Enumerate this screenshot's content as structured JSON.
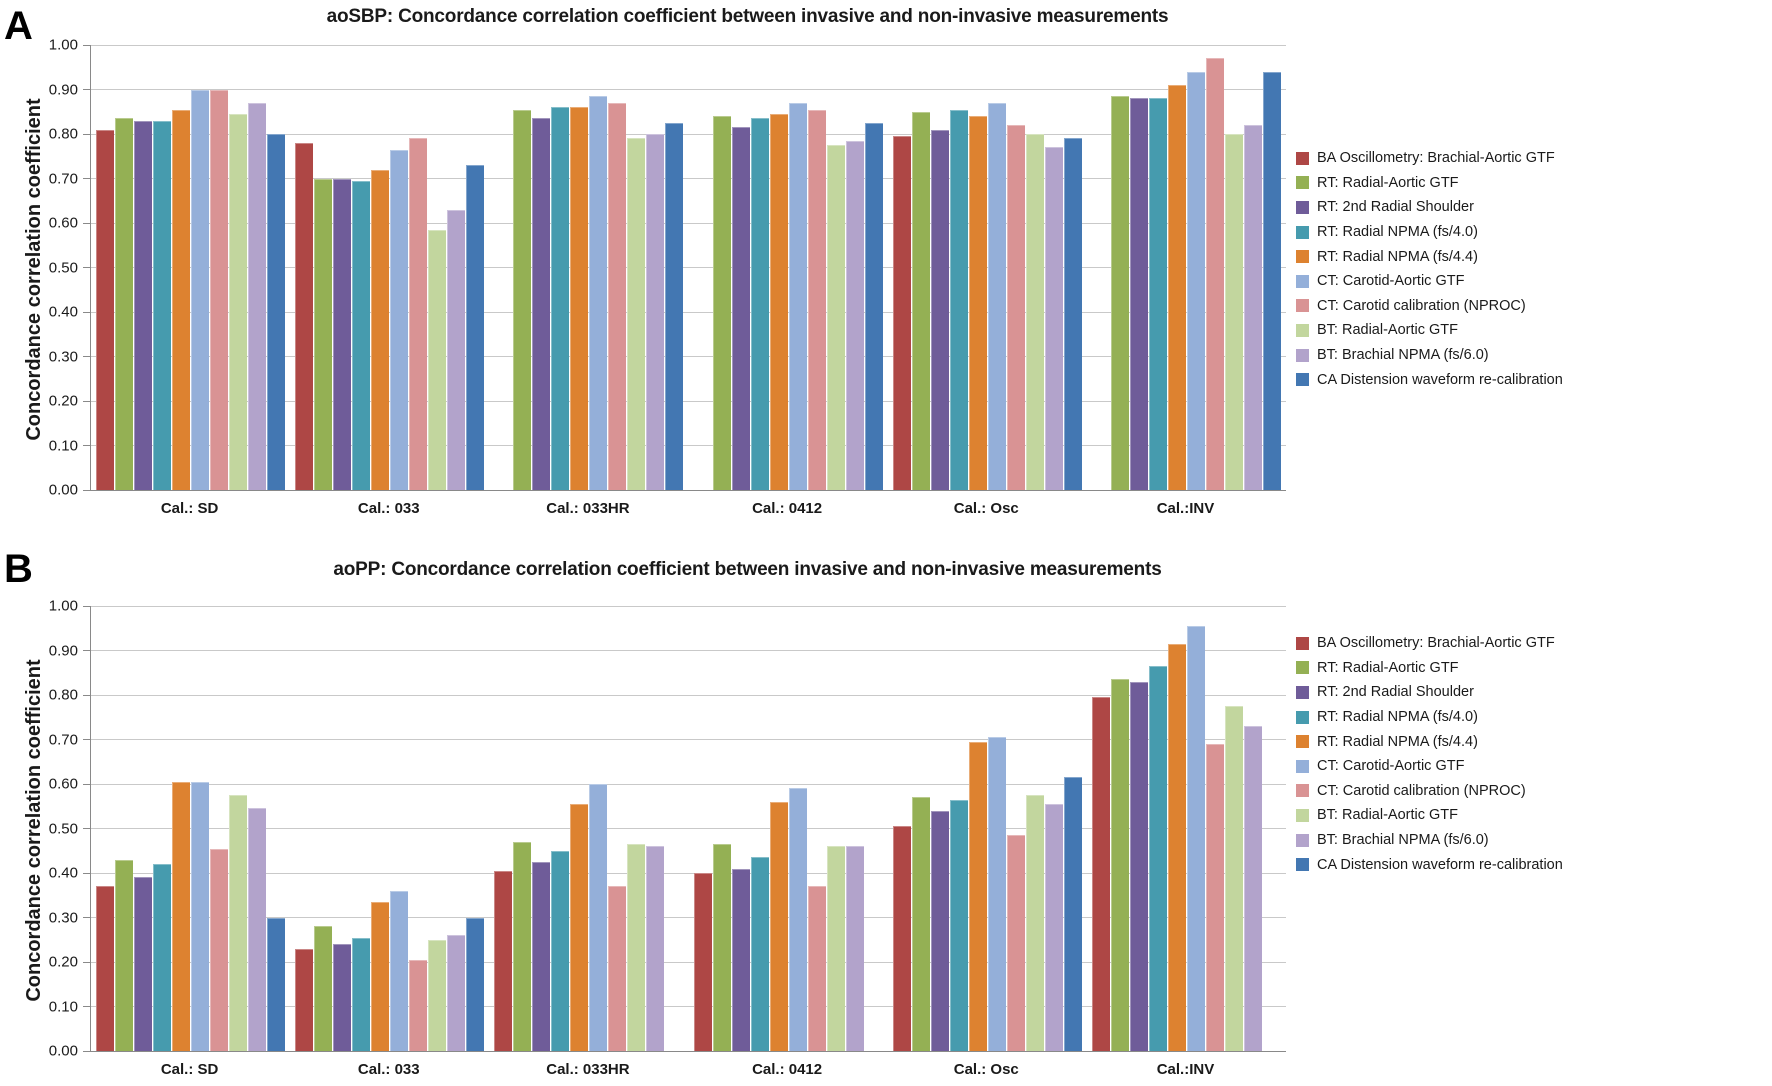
{
  "y_axis": {
    "label": "Concordance correlation coefficient",
    "tick_labels": [
      "0.00",
      "0.10",
      "0.20",
      "0.30",
      "0.40",
      "0.50",
      "0.60",
      "0.70",
      "0.80",
      "0.90",
      "1.00"
    ]
  },
  "chart_data": [
    {
      "type": "bar",
      "panel_label": "A",
      "title": "aoSBP: Concordance correlation coefficient between invasive and non-invasive measurements",
      "xlabel": "",
      "ylabel": "Concordance correlation coefficient",
      "ylim": [
        0,
        1.0
      ],
      "ytick_step": 0.1,
      "grid": true,
      "legend_position": "right",
      "categories": [
        "Cal.: SD",
        "Cal.: 033",
        "Cal.: 033HR",
        "Cal.: 0412",
        "Cal.: Osc",
        "Cal.:INV"
      ],
      "series": [
        {
          "name": "BA Oscillometry: Brachial-Aortic GTF",
          "color": "#AE4745",
          "values": [
            0.81,
            0.78,
            null,
            null,
            0.795,
            null
          ]
        },
        {
          "name": "RT: Radial-Aortic GTF",
          "color": "#94B054",
          "values": [
            0.835,
            0.7,
            0.855,
            0.84,
            0.85,
            0.885
          ]
        },
        {
          "name": "RT: 2nd Radial Shoulder",
          "color": "#6F5C99",
          "values": [
            0.83,
            0.7,
            0.835,
            0.815,
            0.81,
            0.88
          ]
        },
        {
          "name": "RT: Radial NPMA (fs/4.0)",
          "color": "#469BAE",
          "values": [
            0.83,
            0.695,
            0.86,
            0.835,
            0.855,
            0.88
          ]
        },
        {
          "name": "RT: Radial NPMA (fs/4.4)",
          "color": "#DD8230",
          "values": [
            0.855,
            0.72,
            0.86,
            0.845,
            0.84,
            0.91
          ]
        },
        {
          "name": "CT: Carotid-Aortic GTF",
          "color": "#94AFD9",
          "values": [
            0.9,
            0.765,
            0.885,
            0.87,
            0.87,
            0.94
          ]
        },
        {
          "name": "CT: Carotid calibration (NPROC)",
          "color": "#D99394",
          "values": [
            0.9,
            0.79,
            0.87,
            0.855,
            0.82,
            0.97
          ]
        },
        {
          "name": "BT: Radial-Aortic GTF",
          "color": "#C2D69E",
          "values": [
            0.845,
            0.585,
            0.79,
            0.775,
            0.8,
            0.8
          ]
        },
        {
          "name": "BT: Brachial NPMA (fs/6.0)",
          "color": "#B2A3CB",
          "values": [
            0.87,
            0.63,
            0.8,
            0.785,
            0.77,
            0.82
          ]
        },
        {
          "name": "CA Distension waveform re-calibration",
          "color": "#4377B2",
          "values": [
            0.8,
            0.73,
            0.825,
            0.825,
            0.79,
            0.94
          ]
        }
      ]
    },
    {
      "type": "bar",
      "panel_label": "B",
      "title": "aoPP: Concordance correlation coefficient between invasive and non-invasive measurements",
      "xlabel": "",
      "ylabel": "Concordance correlation coefficient",
      "ylim": [
        0,
        1.0
      ],
      "ytick_step": 0.1,
      "grid": true,
      "legend_position": "right",
      "categories": [
        "Cal.: SD",
        "Cal.: 033",
        "Cal.: 033HR",
        "Cal.: 0412",
        "Cal.: Osc",
        "Cal.:INV"
      ],
      "series": [
        {
          "name": "BA Oscillometry: Brachial-Aortic GTF",
          "color": "#AE4745",
          "values": [
            0.37,
            0.23,
            0.405,
            0.4,
            0.505,
            0.795
          ]
        },
        {
          "name": "RT: Radial-Aortic GTF",
          "color": "#94B054",
          "values": [
            0.43,
            0.28,
            0.47,
            0.465,
            0.57,
            0.835
          ]
        },
        {
          "name": "RT: 2nd Radial Shoulder",
          "color": "#6F5C99",
          "values": [
            0.39,
            0.24,
            0.425,
            0.41,
            0.54,
            0.83
          ]
        },
        {
          "name": "RT: Radial NPMA (fs/4.0)",
          "color": "#469BAE",
          "values": [
            0.42,
            0.255,
            0.45,
            0.435,
            0.565,
            0.865
          ]
        },
        {
          "name": "RT: Radial NPMA (fs/4.4)",
          "color": "#DD8230",
          "values": [
            0.605,
            0.335,
            0.555,
            0.56,
            0.695,
            0.915
          ]
        },
        {
          "name": "CT: Carotid-Aortic GTF",
          "color": "#94AFD9",
          "values": [
            0.605,
            0.36,
            0.6,
            0.59,
            0.705,
            0.955
          ]
        },
        {
          "name": "CT: Carotid calibration (NPROC)",
          "color": "#D99394",
          "values": [
            0.455,
            0.205,
            0.37,
            0.37,
            0.485,
            0.69
          ]
        },
        {
          "name": "BT: Radial-Aortic GTF",
          "color": "#C2D69E",
          "values": [
            0.575,
            0.25,
            0.465,
            0.46,
            0.575,
            0.775
          ]
        },
        {
          "name": "BT: Brachial NPMA (fs/6.0)",
          "color": "#B2A3CB",
          "values": [
            0.545,
            0.26,
            0.46,
            0.46,
            0.555,
            0.73
          ]
        },
        {
          "name": "CA Distension waveform re-calibration",
          "color": "#4377B2",
          "values": [
            0.3,
            0.3,
            null,
            null,
            0.615,
            null
          ]
        }
      ]
    }
  ]
}
